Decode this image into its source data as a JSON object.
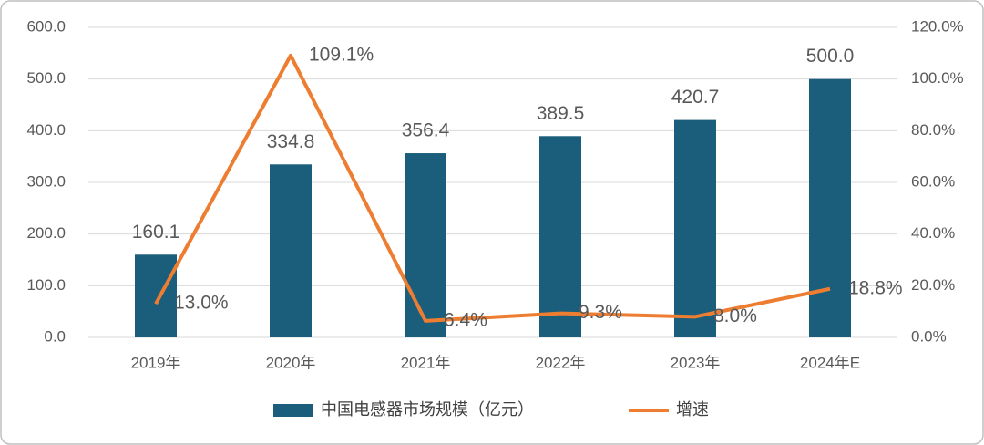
{
  "chart_data": {
    "type": "combo",
    "categories": [
      "2019年",
      "2020年",
      "2021年",
      "2022年",
      "2023年",
      "2024年E"
    ],
    "series": [
      {
        "name": "中国电感器市场规模（亿元）",
        "type": "bar",
        "color": "#1b5e7b",
        "values": [
          160.1,
          334.8,
          356.4,
          389.5,
          420.7,
          500.0
        ],
        "value_labels": [
          "160.1",
          "334.8",
          "356.4",
          "389.5",
          "420.7",
          "500.0"
        ]
      },
      {
        "name": "增速",
        "type": "line",
        "axis": "y2",
        "color": "#ed7d31",
        "values": [
          13.0,
          109.1,
          6.4,
          9.3,
          8.0,
          18.8
        ],
        "value_labels": [
          "13.0%",
          "109.1%",
          "6.4%",
          "9.3%",
          "8.0%",
          "18.8%"
        ]
      }
    ],
    "ylim": [
      0,
      600
    ],
    "yticks": [
      {
        "value": 0,
        "label": "0.0"
      },
      {
        "value": 100,
        "label": "100.0"
      },
      {
        "value": 200,
        "label": "200.0"
      },
      {
        "value": 300,
        "label": "300.0"
      },
      {
        "value": 400,
        "label": "400.0"
      },
      {
        "value": 500,
        "label": "500.0"
      },
      {
        "value": 600,
        "label": "600.0"
      }
    ],
    "y2lim": [
      0,
      120
    ],
    "y2ticks": [
      {
        "value": 0,
        "label": "0.0%"
      },
      {
        "value": 20,
        "label": "20.0%"
      },
      {
        "value": 40,
        "label": "40.0%"
      },
      {
        "value": 60,
        "label": "60.0%"
      },
      {
        "value": 80,
        "label": "80.0%"
      },
      {
        "value": 100,
        "label": "100.0%"
      },
      {
        "value": 120,
        "label": "120.0%"
      }
    ],
    "grid": true,
    "legend": "bottom"
  }
}
